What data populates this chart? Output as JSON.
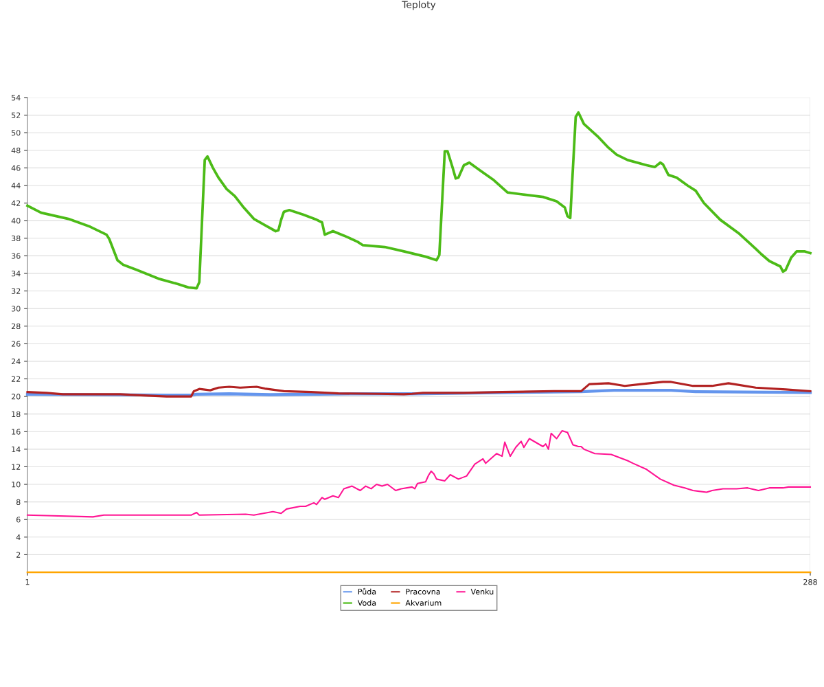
{
  "chart_data": {
    "type": "line",
    "title": "Teploty",
    "xlim": [
      1,
      288
    ],
    "xticks": [
      1,
      288
    ],
    "ylim": [
      0,
      54
    ],
    "yticks": [
      2,
      4,
      6,
      8,
      10,
      12,
      14,
      16,
      18,
      20,
      22,
      24,
      26,
      28,
      30,
      32,
      34,
      36,
      38,
      40,
      42,
      44,
      46,
      48,
      50,
      52,
      54
    ],
    "grid": true,
    "legend": "bottom",
    "marker": "none",
    "line_style": "solid",
    "series": [
      {
        "name": "Půda",
        "color": "#6495ed",
        "x": [
          1,
          52,
          61,
          63,
          75,
          90,
          119,
          142,
          204,
          216,
          237,
          246,
          288
        ],
        "values": [
          20.25,
          20.15,
          20.15,
          20.25,
          20.3,
          20.2,
          20.3,
          20.3,
          20.55,
          20.7,
          20.7,
          20.55,
          20.45
        ]
      },
      {
        "name": "Voda",
        "color": "#4cbb17",
        "x": [
          1,
          6,
          16,
          24,
          30,
          31,
          32,
          34,
          36,
          41,
          49,
          56,
          60,
          63,
          64,
          66,
          67,
          69,
          71,
          74,
          77,
          80,
          84,
          88,
          92,
          93,
          94,
          95,
          97,
          102,
          107,
          109,
          110,
          113,
          117,
          122,
          124,
          132,
          139,
          147,
          151,
          152,
          154,
          155,
          157,
          158,
          159,
          161,
          163,
          167,
          172,
          177,
          182,
          190,
          195,
          198,
          199,
          200,
          202,
          203,
          205,
          210,
          214,
          217,
          221,
          228,
          231,
          233,
          234,
          236,
          239,
          243,
          246,
          249,
          255,
          262,
          268,
          270,
          273,
          277,
          278,
          279,
          281,
          283,
          286,
          288
        ],
        "values": [
          41.7,
          40.9,
          40.2,
          39.3,
          38.4,
          37.9,
          37.1,
          35.5,
          35.0,
          34.4,
          33.4,
          32.8,
          32.4,
          32.3,
          33.0,
          46.9,
          47.3,
          46.0,
          44.9,
          43.6,
          42.8,
          41.6,
          40.2,
          39.5,
          38.8,
          38.9,
          40.1,
          41.0,
          41.2,
          40.7,
          40.1,
          39.8,
          38.4,
          38.8,
          38.3,
          37.6,
          37.2,
          37.0,
          36.5,
          35.9,
          35.5,
          36.1,
          47.9,
          47.9,
          45.9,
          44.8,
          44.9,
          46.3,
          46.6,
          45.7,
          44.6,
          43.2,
          43.0,
          42.7,
          42.2,
          41.5,
          40.5,
          40.3,
          51.8,
          52.3,
          51.0,
          49.6,
          48.3,
          47.5,
          46.9,
          46.3,
          46.1,
          46.6,
          46.4,
          45.2,
          44.9,
          44.0,
          43.4,
          42.0,
          40.1,
          38.5,
          36.8,
          36.2,
          35.4,
          34.8,
          34.2,
          34.4,
          35.8,
          36.5,
          36.5,
          36.3
        ]
      },
      {
        "name": "Pracovna",
        "color": "#b22222",
        "x": [
          1,
          8,
          14,
          35,
          45,
          52,
          61,
          62,
          64,
          68,
          71,
          75,
          79,
          85,
          88,
          95,
          105,
          115,
          130,
          139,
          142,
          146,
          161,
          175,
          194,
          204,
          207,
          214,
          220,
          226,
          234,
          237,
          245,
          252,
          258,
          260,
          268,
          279,
          288
        ],
        "values": [
          20.5,
          20.4,
          20.25,
          20.25,
          20.1,
          20.0,
          20.0,
          20.6,
          20.85,
          20.7,
          21.0,
          21.1,
          21.0,
          21.1,
          20.9,
          20.6,
          20.5,
          20.35,
          20.3,
          20.25,
          20.3,
          20.4,
          20.4,
          20.5,
          20.6,
          20.6,
          21.4,
          21.5,
          21.2,
          21.4,
          21.65,
          21.65,
          21.2,
          21.2,
          21.5,
          21.4,
          21.0,
          20.8,
          20.6
        ]
      },
      {
        "name": "Akvarium",
        "color": "#ffa500",
        "x": [
          1,
          288
        ],
        "values": [
          0,
          0
        ]
      },
      {
        "name": "Venku",
        "color": "#ff1493",
        "x": [
          1,
          8,
          25,
          29,
          61,
          63,
          64,
          81,
          84,
          91,
          94,
          96,
          101,
          103,
          106,
          107,
          109,
          110,
          113,
          115,
          117,
          120,
          123,
          125,
          127,
          129,
          131,
          133,
          136,
          138,
          142,
          143,
          144,
          147,
          148,
          149,
          150,
          151,
          154,
          156,
          159,
          162,
          165,
          168,
          169,
          173,
          175,
          176,
          178,
          180,
          182,
          183,
          185,
          190,
          191,
          192,
          193,
          195,
          197,
          199,
          200,
          201,
          203,
          204,
          205,
          209,
          215,
          221,
          223,
          228,
          233,
          238,
          242,
          245,
          250,
          252,
          256,
          261,
          265,
          269,
          273,
          278,
          280,
          288
        ],
        "values": [
          6.5,
          6.45,
          6.3,
          6.5,
          6.5,
          6.8,
          6.5,
          6.6,
          6.5,
          6.9,
          6.7,
          7.2,
          7.5,
          7.5,
          7.9,
          7.7,
          8.5,
          8.3,
          8.7,
          8.5,
          9.5,
          9.8,
          9.3,
          9.8,
          9.5,
          10.0,
          9.8,
          10.0,
          9.3,
          9.5,
          9.7,
          9.5,
          10.1,
          10.3,
          11.0,
          11.5,
          11.2,
          10.6,
          10.4,
          11.1,
          10.6,
          10.95,
          12.3,
          12.9,
          12.4,
          13.5,
          13.2,
          14.8,
          13.2,
          14.2,
          14.9,
          14.2,
          15.2,
          14.3,
          14.6,
          14.0,
          15.8,
          15.2,
          16.1,
          15.9,
          15.2,
          14.5,
          14.3,
          14.3,
          14.0,
          13.5,
          13.4,
          12.7,
          12.4,
          11.7,
          10.6,
          9.9,
          9.6,
          9.3,
          9.1,
          9.3,
          9.5,
          9.5,
          9.6,
          9.3,
          9.6,
          9.6,
          9.7,
          9.7
        ]
      }
    ]
  }
}
